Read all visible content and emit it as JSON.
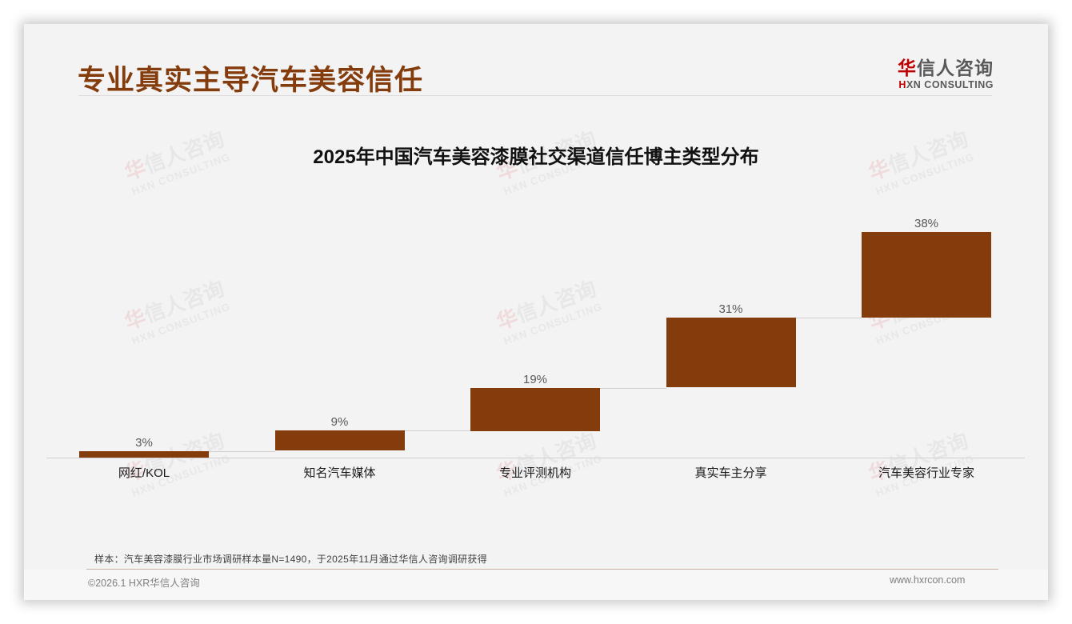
{
  "header": {
    "page_title": "专业真实主导汽车美容信任",
    "logo_cn_accent": "华",
    "logo_cn_rest": "信人咨询",
    "logo_en_accent": "H",
    "logo_en_rest": "XN CONSULTING"
  },
  "watermark": {
    "cn_accent": "华",
    "cn_rest": "信人咨询",
    "en": "HXN CONSULTING"
  },
  "chart_data": {
    "type": "bar",
    "subtype": "waterfall",
    "title": "2025年中国汽车美容漆膜社交渠道信任博主类型分布",
    "xlabel": "",
    "ylabel": "",
    "categories": [
      "网红/KOL",
      "知名汽车媒体",
      "专业评测机构",
      "真实车主分享",
      "汽车美容行业专家"
    ],
    "values": [
      3,
      9,
      19,
      31,
      38
    ],
    "value_labels": [
      "3%",
      "9%",
      "19%",
      "31%",
      "38%"
    ],
    "unit": "%",
    "ylim": [
      0,
      100
    ],
    "grid": false,
    "legend": "none",
    "bar_color": "#843c0c"
  },
  "footer": {
    "source_note": "样本：汽车美容漆膜行业市场调研样本量N=1490，于2025年11月通过华信人咨询调研获得",
    "copyright": "©2026.1 HXR华信人咨询",
    "website": "www.hxrcon.com"
  }
}
